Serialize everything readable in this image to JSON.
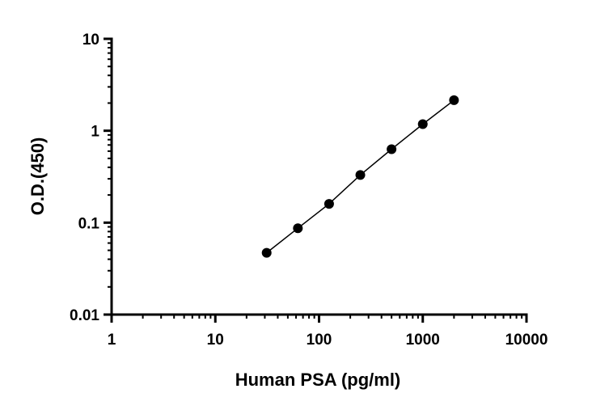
{
  "chart_data": {
    "type": "scatter",
    "title": "",
    "xlabel": "Human PSA (pg/ml)",
    "ylabel": "O.D.(450)",
    "x_scale": "log",
    "y_scale": "log",
    "xlim": [
      1,
      10000
    ],
    "ylim": [
      0.01,
      10
    ],
    "x_ticks": [
      "1",
      "10",
      "100",
      "1000",
      "10000"
    ],
    "y_ticks": [
      "0.01",
      "0.1",
      "1",
      "10"
    ],
    "grid": false,
    "legend": "none",
    "marker_color": "#000000",
    "line_color": "#000000",
    "series": [
      {
        "x": [
          31.25,
          62.5,
          125,
          250,
          500,
          1000,
          2000
        ],
        "y": [
          0.047,
          0.087,
          0.16,
          0.33,
          0.63,
          1.18,
          2.15
        ]
      }
    ]
  }
}
